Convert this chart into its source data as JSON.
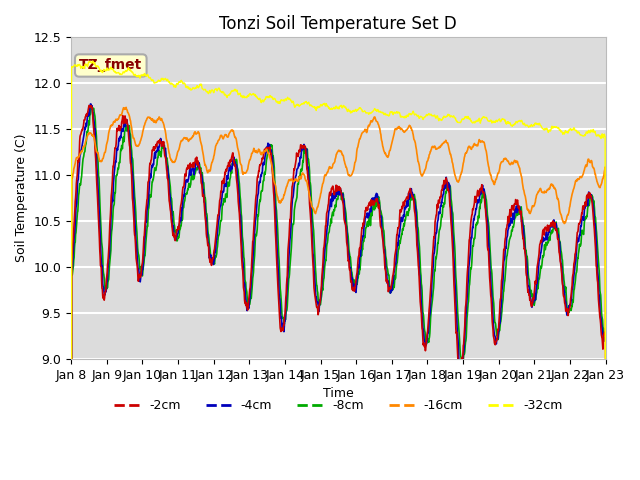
{
  "title": "Tonzi Soil Temperature Set D",
  "xlabel": "Time",
  "ylabel": "Soil Temperature (C)",
  "ylim": [
    9.0,
    12.5
  ],
  "bg_color": "#dcdcdc",
  "label_box_text": "TZ_fmet",
  "label_box_color": "#ffffcc",
  "label_box_border": "#880000",
  "label_box_edge_color": "#aaaaaa",
  "series_colors": {
    "-2cm": "#cc0000",
    "-4cm": "#0000bb",
    "-8cm": "#00aa00",
    "-16cm": "#ff8800",
    "-32cm": "#ffff00"
  },
  "tick_dates": [
    "Jan 8",
    "Jan 9",
    "Jan 10",
    "Jan 11",
    "Jan 12",
    "Jan 13",
    "Jan 14",
    "Jan 15",
    "Jan 16",
    "Jan 17",
    "Jan 18",
    "Jan 19",
    "Jan 20",
    "Jan 21",
    "Jan 22",
    "Jan 23"
  ],
  "n_days": 15,
  "pts_per_day": 96
}
